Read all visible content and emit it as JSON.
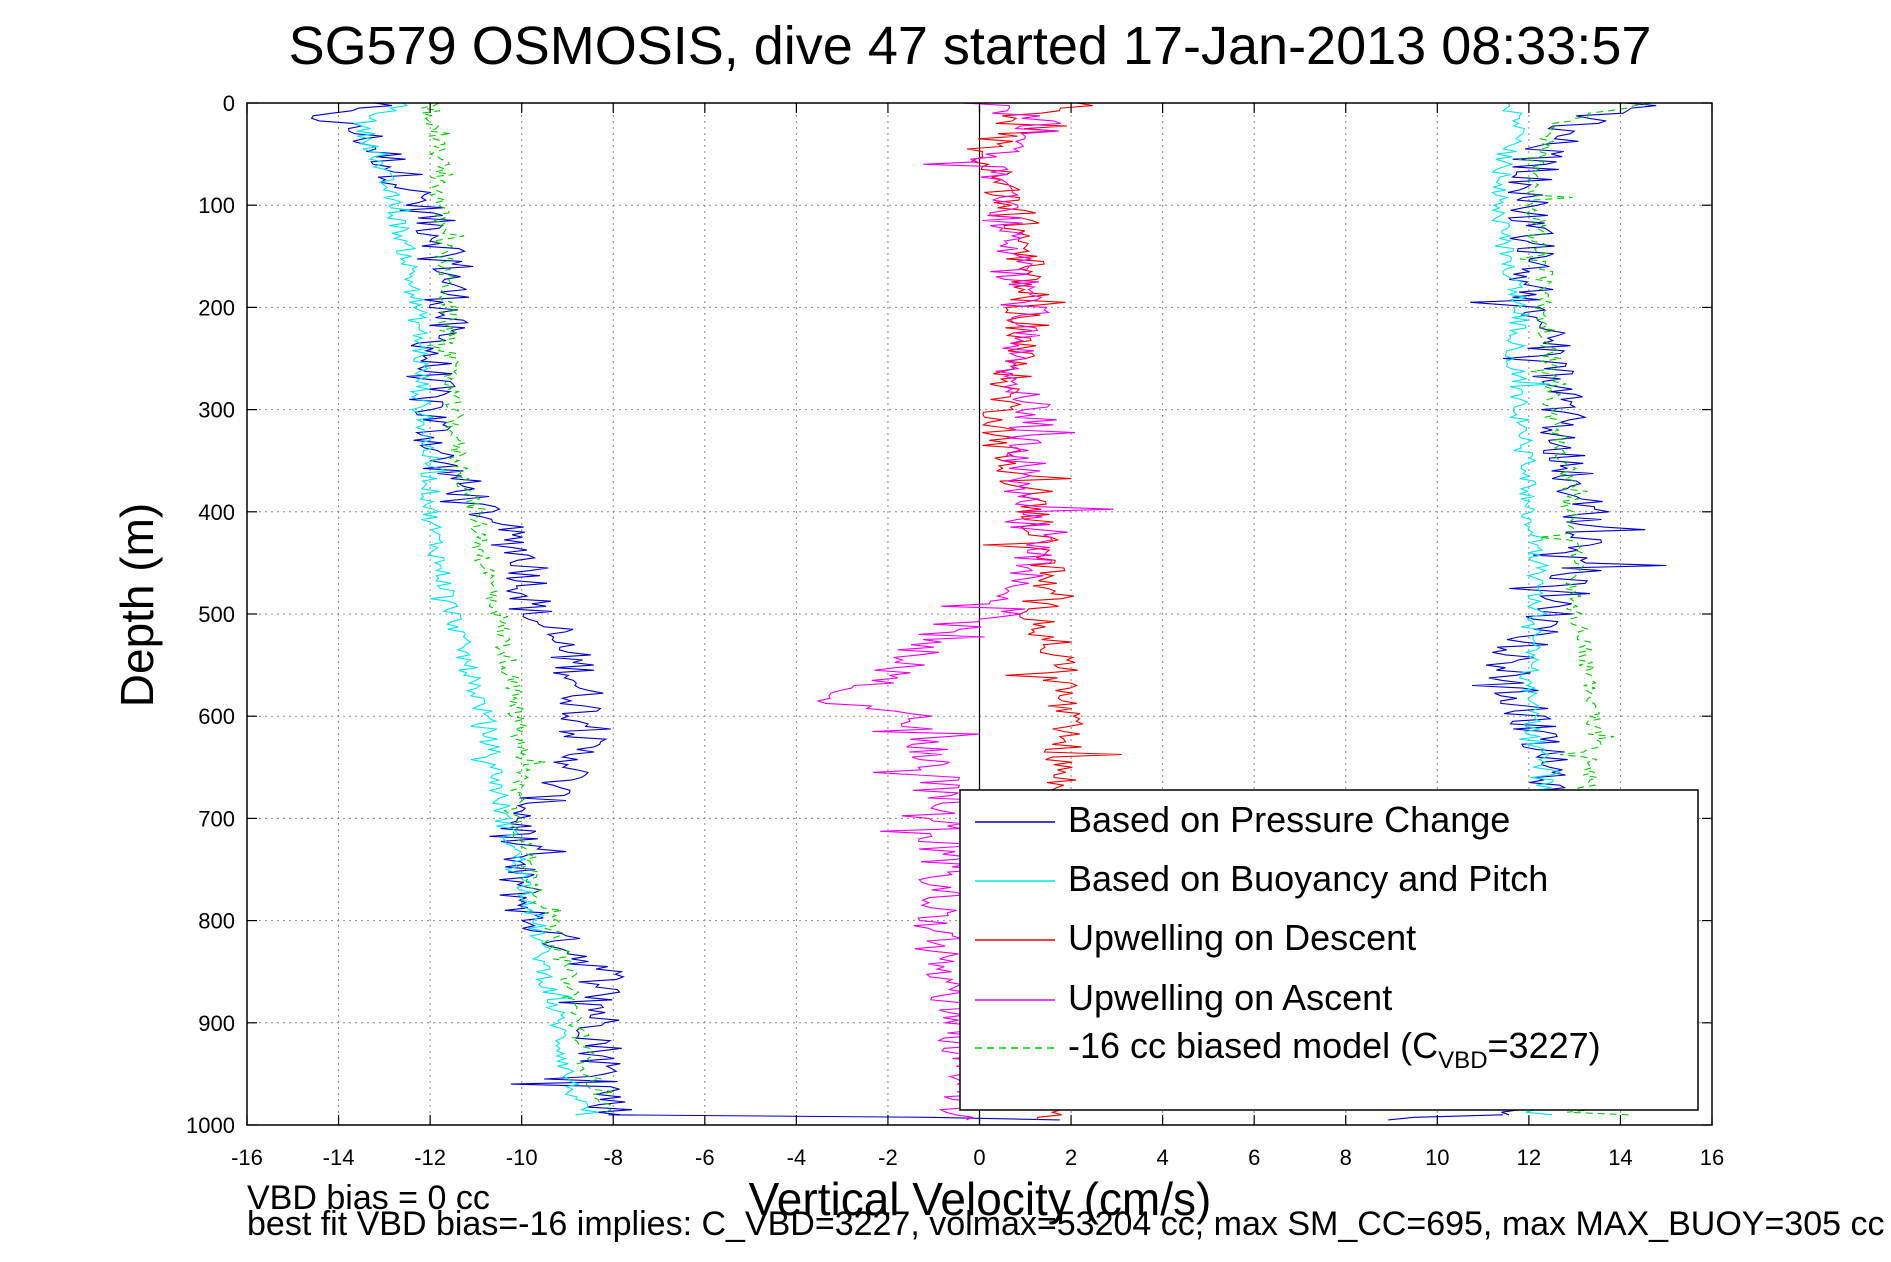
{
  "chart_data": {
    "type": "line",
    "title": "SG579 OSMOSIS, dive 47 started 17-Jan-2013 08:33:57",
    "xlabel": "Vertical Velocity (cm/s)",
    "ylabel": "Depth (m)",
    "xlim": [
      -16,
      16
    ],
    "ylim": [
      1000,
      0
    ],
    "y_reversed": true,
    "grid": true,
    "x_ticks": [
      "-16",
      "-14",
      "-12",
      "-10",
      "-8",
      "-6",
      "-4",
      "-2",
      "0",
      "2",
      "4",
      "6",
      "8",
      "10",
      "12",
      "14",
      "16"
    ],
    "y_ticks": [
      "0",
      "100",
      "200",
      "300",
      "400",
      "500",
      "600",
      "700",
      "800",
      "900",
      "1000"
    ],
    "legend_position": "lower-right",
    "legend": [
      {
        "label": "Based on Pressure Change",
        "color": "#0000cc",
        "dash": "solid"
      },
      {
        "label": "Based on Buoyancy and Pitch",
        "color": "#00e5ee",
        "dash": "solid"
      },
      {
        "label": "Upwelling on Descent",
        "color": "#ee0000",
        "dash": "solid"
      },
      {
        "label": "Upwelling on Ascent",
        "color": "#ee00ee",
        "dash": "solid"
      },
      {
        "label_prefix": "-16 cc biased model (C",
        "label_sub": "VBD",
        "label_suffix": "=3227)",
        "color": "#00cc00",
        "dash": "dashed"
      }
    ],
    "series": [
      {
        "name": "Based on Pressure Change",
        "color": "#0000cc",
        "noise": 0.55,
        "segments": [
          {
            "depth": [
              0,
              10,
              30,
              60,
              100,
              150,
              200,
              250,
              300,
              350,
              400,
              450,
              500,
              550,
              600,
              650,
              700,
              750,
              800,
              850,
              900,
              950,
              990
            ],
            "velocity": [
              -13,
              -14.5,
              -13.5,
              -12.8,
              -12.2,
              -11.5,
              -11.6,
              -12.0,
              -12.0,
              -11.8,
              -10.8,
              -9.8,
              -9.8,
              -8.8,
              -8.6,
              -8.8,
              -10.0,
              -10.2,
              -9.8,
              -8.2,
              -8.3,
              -8.2,
              -8.0
            ]
          },
          {
            "depth": [
              990,
              990,
              995
            ],
            "velocity": [
              -8.0,
              -4.0,
              2.0
            ]
          },
          {
            "depth": [
              995,
              990
            ],
            "velocity": [
              9.0,
              11.0
            ]
          },
          {
            "depth": [
              990,
              950,
              900,
              850,
              800,
              750,
              700,
              650,
              600,
              550,
              500,
              450,
              400,
              350,
              300,
              250,
              200,
              150,
              100,
              50,
              20,
              0
            ],
            "velocity": [
              11.5,
              11.8,
              12.0,
              11.9,
              12.0,
              12.2,
              12.3,
              12.4,
              12.0,
              11.5,
              12.5,
              13.2,
              13.2,
              12.8,
              12.8,
              12.5,
              12.0,
              12.2,
              12.0,
              12.2,
              13.0,
              14.5
            ]
          }
        ]
      },
      {
        "name": "Based on Buoyancy and Pitch",
        "color": "#00e5ee",
        "noise": 0.22,
        "segments": [
          {
            "depth": [
              0,
              20,
              50,
              100,
              150,
              200,
              250,
              300,
              350,
              400,
              450,
              500,
              550,
              600,
              650,
              700,
              750,
              800,
              850,
              900,
              950,
              990
            ],
            "velocity": [
              -12.5,
              -13.5,
              -13.2,
              -12.8,
              -12.5,
              -12.3,
              -12.2,
              -12.2,
              -12.0,
              -12.0,
              -11.8,
              -11.5,
              -11.2,
              -10.8,
              -10.6,
              -10.4,
              -10.0,
              -9.7,
              -9.5,
              -9.2,
              -9.0,
              -8.7
            ]
          },
          {
            "depth": [
              990,
              990,
              900,
              850,
              800,
              750,
              700,
              650,
              600,
              550,
              500,
              450,
              400,
              350,
              300,
              250,
              200,
              150,
              100,
              50,
              20,
              0
            ],
            "velocity": [
              12.5,
              12.0,
              12.0,
              12.2,
              12.3,
              12.5,
              12.4,
              12.3,
              12.0,
              12.0,
              12.2,
              12.2,
              12.0,
              11.9,
              11.8,
              11.7,
              11.8,
              11.5,
              11.3,
              11.5,
              11.8,
              11.5
            ]
          }
        ]
      },
      {
        "name": "-16 cc biased model (CVBD=3227)",
        "color": "#00cc00",
        "dash": "7,5",
        "noise": 0.22,
        "segments": [
          {
            "depth": [
              0,
              20,
              50,
              100,
              150,
              200,
              250,
              300,
              350,
              400,
              450,
              500,
              550,
              600,
              650,
              700,
              750,
              800,
              850,
              900,
              950,
              990
            ],
            "velocity": [
              -12.0,
              -12.0,
              -11.8,
              -11.8,
              -11.7,
              -11.6,
              -11.6,
              -11.5,
              -11.4,
              -11.0,
              -10.8,
              -10.5,
              -10.3,
              -10.1,
              -10.0,
              -10.1,
              -9.8,
              -9.4,
              -9.0,
              -8.8,
              -8.5,
              -8.2
            ]
          },
          {
            "depth": [
              990,
              990,
              900,
              850,
              800,
              750,
              700,
              650,
              600,
              550,
              500,
              450,
              400,
              350,
              300,
              250,
              200,
              150,
              100,
              50,
              20,
              0
            ],
            "velocity": [
              14.0,
              13.3,
              13.2,
              13.2,
              13.4,
              13.4,
              13.3,
              13.3,
              13.5,
              13.3,
              13.0,
              13.0,
              12.9,
              12.8,
              12.5,
              12.5,
              12.3,
              12.3,
              12.1,
              12.3,
              12.5,
              14.5
            ]
          }
        ]
      },
      {
        "name": "Upwelling on Descent",
        "color": "#ee0000",
        "noise": 0.45,
        "segments": [
          {
            "depth": [
              0,
              10,
              50,
              100,
              150,
              200,
              250,
              300,
              350,
              400,
              450,
              500,
              550,
              600,
              650,
              700,
              750,
              800,
              850,
              900,
              950,
              995
            ],
            "velocity": [
              2.5,
              1.0,
              0.0,
              0.8,
              1.0,
              1.0,
              0.8,
              0.5,
              0.5,
              1.2,
              1.5,
              1.3,
              1.8,
              1.8,
              1.8,
              1.6,
              1.5,
              1.5,
              1.5,
              1.5,
              1.5,
              1.5
            ]
          }
        ]
      },
      {
        "name": "Upwelling on Ascent",
        "color": "#ee00ee",
        "noise": 0.55,
        "segments": [
          {
            "depth": [
              995,
              950,
              900,
              850,
              800,
              750,
              700,
              650,
              600,
              590,
              550,
              520,
              500,
              450,
              400,
              350,
              300,
              250,
              200,
              150,
              100,
              50,
              20,
              0
            ],
            "velocity": [
              -0.5,
              -0.3,
              -0.5,
              -0.8,
              -1.0,
              -0.8,
              -0.8,
              -1.0,
              -1.2,
              -3.5,
              -1.5,
              -1.0,
              0.5,
              1.2,
              1.0,
              1.0,
              1.2,
              0.8,
              1.0,
              0.6,
              0.5,
              0.3,
              1.5,
              0.0
            ]
          }
        ]
      }
    ]
  },
  "footer": {
    "line1": "VBD bias = 0 cc",
    "line2": "best fit VBD bias=-16 implies: C_VBD=3227, volmax=53204 cc, max SM_CC=695, max MAX_BUOY=305 cc"
  }
}
